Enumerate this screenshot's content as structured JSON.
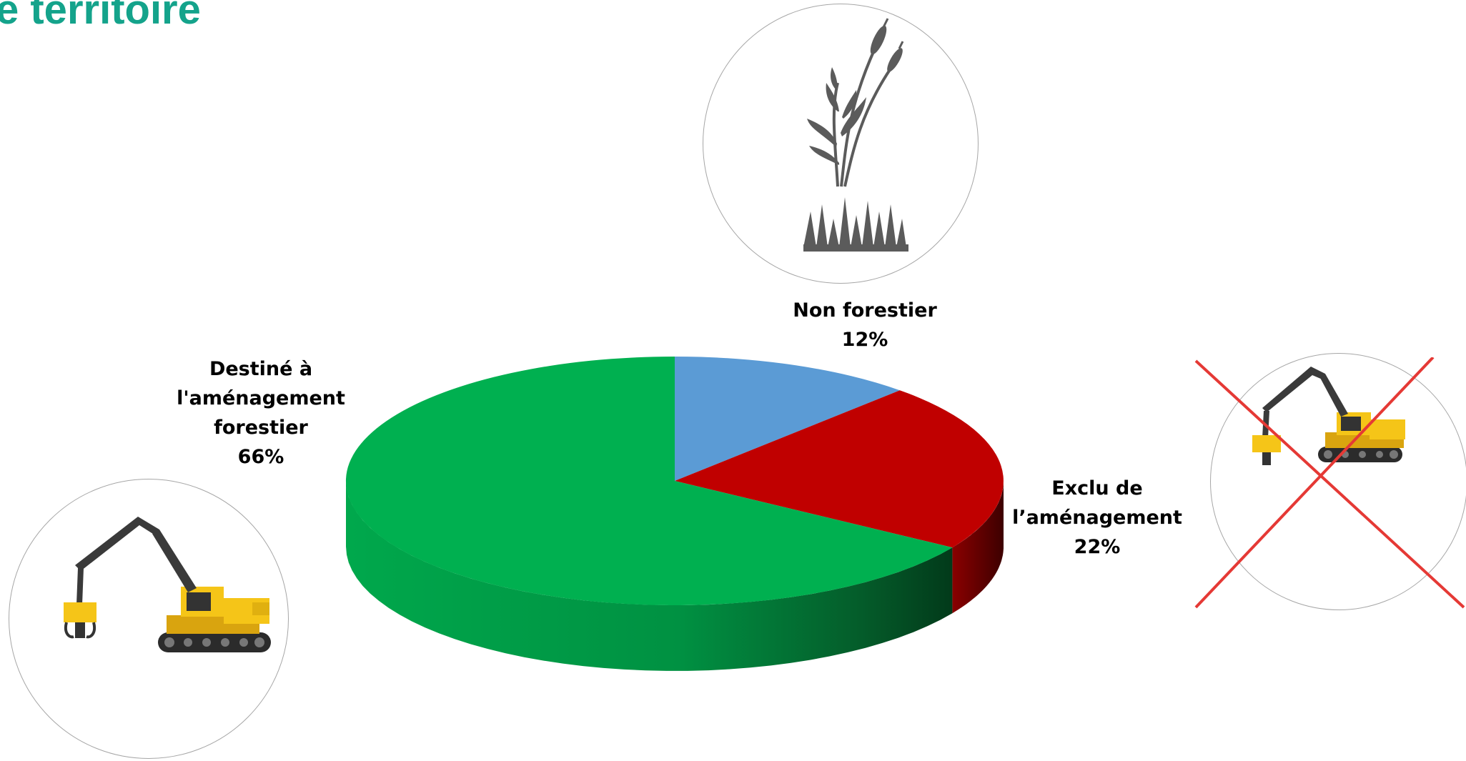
{
  "title": "e territoire",
  "chart_data": {
    "type": "pie",
    "style": "3d",
    "start": "top",
    "direction": "clockwise",
    "slices": [
      {
        "label": "Non forestier",
        "value": 12,
        "value_label": "12%",
        "color": "#5B9BD5",
        "side_color": "#3e6e9c",
        "icon": "marsh-plant-icon"
      },
      {
        "label": "Exclu de l’aménagement",
        "label_lines": [
          "Exclu de",
          "l’aménagement"
        ],
        "value": 22,
        "value_label": "22%",
        "color": "#C00000",
        "side_color": "#5c0000",
        "icon": "crossed-out-harvester-icon"
      },
      {
        "label": "Destiné à l'aménagement forestier",
        "label_lines": [
          "Destiné à",
          "l'aménagement",
          "forestier"
        ],
        "value": 66,
        "value_label": "66%",
        "color": "#00B050",
        "side_color": "#007a37",
        "icon": "forestry-harvester-icon"
      }
    ]
  },
  "colors": {
    "title": "#14A38B",
    "cross": "#E53935",
    "machine_yellow": "#F5C518",
    "machine_dark": "#3a3a3a",
    "plant": "#5b5b5b"
  }
}
